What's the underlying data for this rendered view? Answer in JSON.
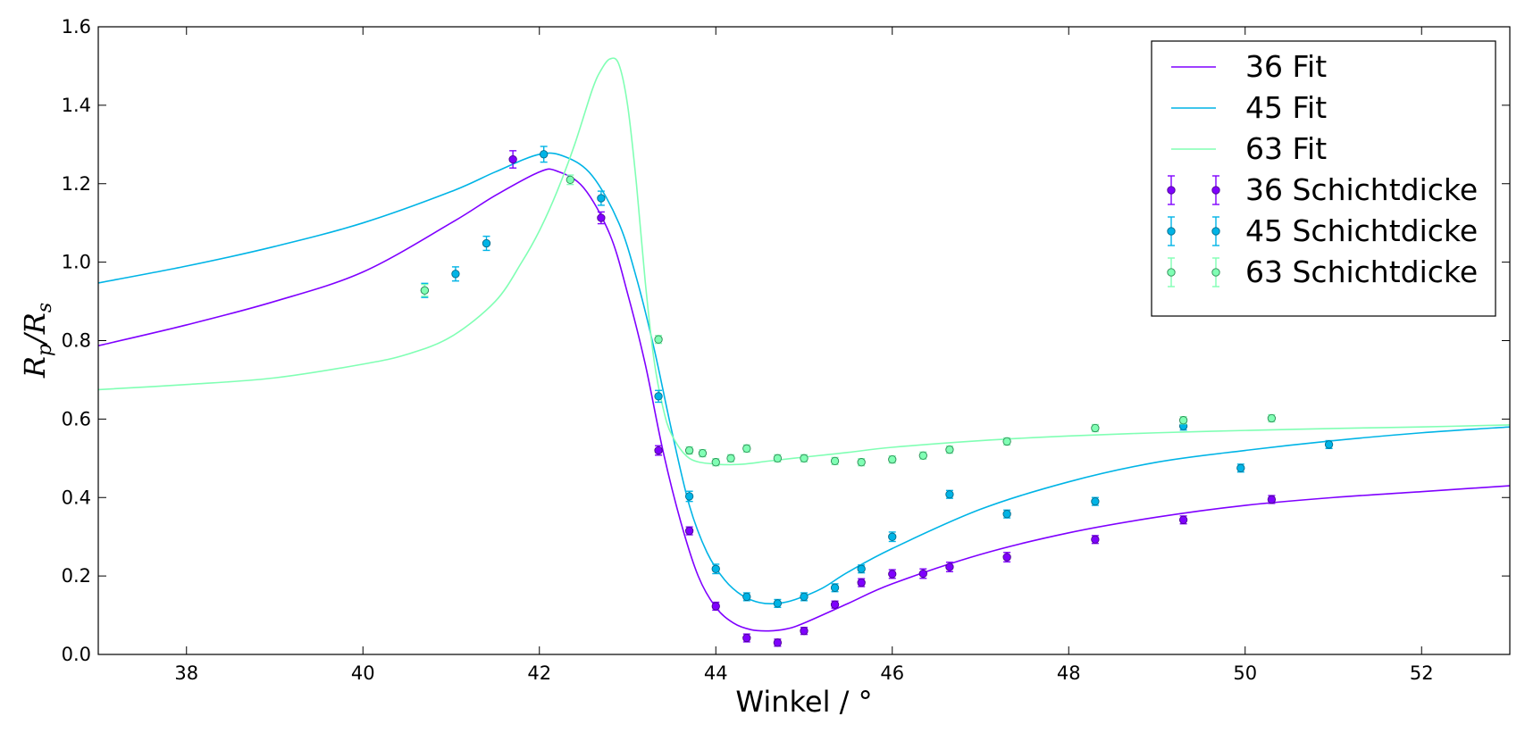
{
  "chart_data": {
    "type": "scatter",
    "xlabel": "Winkel / °",
    "ylabel": "Rp/Rs",
    "ylabel_parts": {
      "main": "R",
      "num_sub": "p",
      "slash": "/",
      "den": "R",
      "den_sub": "s"
    },
    "xlim": [
      37,
      53
    ],
    "ylim": [
      0.0,
      1.6
    ],
    "xticks": [
      38,
      40,
      42,
      44,
      46,
      48,
      50,
      52
    ],
    "yticks": [
      0.0,
      0.2,
      0.4,
      0.6,
      0.8,
      1.0,
      1.2,
      1.4,
      1.6
    ],
    "ytick_labels": [
      "0.0",
      "0.2",
      "0.4",
      "0.6",
      "0.8",
      "1.0",
      "1.2",
      "1.4",
      "1.6"
    ],
    "grid": false,
    "legend_position": "top-right",
    "series": [
      {
        "name": "36 Fit",
        "kind": "line",
        "color": "#7f00ff",
        "x": [
          37.0,
          38.0,
          39.0,
          40.0,
          41.0,
          41.5,
          42.0,
          42.2,
          42.5,
          42.8,
          43.0,
          43.2,
          43.4,
          43.6,
          43.8,
          44.0,
          44.2,
          44.4,
          44.6,
          44.8,
          45.0,
          45.5,
          46.0,
          47.0,
          48.0,
          49.0,
          50.0,
          51.0,
          52.0,
          53.0
        ],
        "y": [
          0.787,
          0.84,
          0.9,
          0.975,
          1.1,
          1.17,
          1.23,
          1.232,
          1.19,
          1.07,
          0.92,
          0.74,
          0.52,
          0.34,
          0.2,
          0.12,
          0.08,
          0.063,
          0.06,
          0.065,
          0.08,
          0.13,
          0.18,
          0.255,
          0.31,
          0.35,
          0.38,
          0.4,
          0.415,
          0.43
        ]
      },
      {
        "name": "45 Fit",
        "kind": "line",
        "color": "#00b4e6",
        "x": [
          37.0,
          38.0,
          39.0,
          40.0,
          41.0,
          41.5,
          42.0,
          42.3,
          42.6,
          42.9,
          43.1,
          43.3,
          43.5,
          43.7,
          43.9,
          44.1,
          44.3,
          44.5,
          44.7,
          44.9,
          45.2,
          45.5,
          46.0,
          47.0,
          48.0,
          49.0,
          50.0,
          51.0,
          52.0,
          53.0
        ],
        "y": [
          0.947,
          0.99,
          1.04,
          1.1,
          1.18,
          1.23,
          1.275,
          1.268,
          1.22,
          1.1,
          0.96,
          0.78,
          0.57,
          0.38,
          0.26,
          0.19,
          0.15,
          0.132,
          0.13,
          0.14,
          0.168,
          0.21,
          0.27,
          0.37,
          0.44,
          0.49,
          0.52,
          0.545,
          0.565,
          0.58
        ]
      },
      {
        "name": "63 Fit",
        "kind": "line",
        "color": "#80ffb4",
        "x": [
          37.0,
          38.0,
          39.0,
          40.0,
          40.5,
          41.0,
          41.5,
          41.8,
          42.0,
          42.2,
          42.4,
          42.6,
          42.7,
          42.8,
          42.9,
          43.0,
          43.1,
          43.2,
          43.3,
          43.4,
          43.5,
          43.7,
          44.0,
          44.3,
          44.6,
          45.0,
          45.5,
          46.0,
          47.0,
          48.0,
          49.0,
          50.0,
          51.0,
          52.0,
          53.0
        ],
        "y": [
          0.675,
          0.688,
          0.705,
          0.74,
          0.765,
          0.81,
          0.9,
          1.0,
          1.08,
          1.18,
          1.3,
          1.44,
          1.49,
          1.518,
          1.505,
          1.4,
          1.2,
          0.95,
          0.75,
          0.63,
          0.56,
          0.5,
          0.485,
          0.485,
          0.493,
          0.503,
          0.515,
          0.528,
          0.545,
          0.557,
          0.565,
          0.571,
          0.576,
          0.58,
          0.585
        ]
      },
      {
        "name": "36 Schichtdicke",
        "kind": "errorbar",
        "color": "#7f00ff",
        "edge": "#4a0090",
        "x": [
          41.7,
          42.7,
          43.35,
          43.7,
          44.0,
          44.35,
          44.7,
          45.0,
          45.35,
          45.65,
          46.0,
          46.35,
          46.65,
          47.3,
          48.3,
          49.3,
          50.3
        ],
        "y": [
          1.262,
          1.113,
          0.52,
          0.315,
          0.123,
          0.042,
          0.03,
          0.06,
          0.127,
          0.183,
          0.205,
          0.206,
          0.223,
          0.248,
          0.293,
          0.343,
          0.395
        ],
        "yerr": [
          0.022,
          0.015,
          0.012,
          0.01,
          0.01,
          0.01,
          0.009,
          0.009,
          0.009,
          0.01,
          0.011,
          0.012,
          0.012,
          0.012,
          0.01,
          0.01,
          0.01
        ]
      },
      {
        "name": "45 Schichtdicke",
        "kind": "errorbar",
        "color": "#00b4e6",
        "edge": "#006a8a",
        "x": [
          40.7,
          41.05,
          41.4,
          42.05,
          42.7,
          43.35,
          43.7,
          44.0,
          44.35,
          44.7,
          45.0,
          45.35,
          45.65,
          46.0,
          46.65,
          47.3,
          48.3,
          49.3,
          49.95,
          50.95
        ],
        "y": [
          0.928,
          0.97,
          1.048,
          1.275,
          1.163,
          0.658,
          0.403,
          0.218,
          0.147,
          0.13,
          0.147,
          0.17,
          0.218,
          0.3,
          0.408,
          0.358,
          0.39,
          0.582,
          0.475,
          0.535
        ],
        "yerr": [
          0.018,
          0.018,
          0.018,
          0.02,
          0.018,
          0.015,
          0.013,
          0.012,
          0.01,
          0.01,
          0.01,
          0.01,
          0.01,
          0.012,
          0.01,
          0.01,
          0.01,
          0.01,
          0.01,
          0.01
        ]
      },
      {
        "name": "63 Schichtdicke",
        "kind": "errorbar",
        "color": "#80ffb4",
        "edge": "#2e8a55",
        "x": [
          40.7,
          42.35,
          43.35,
          43.7,
          43.85,
          44.0,
          44.17,
          44.35,
          44.7,
          45.0,
          45.35,
          45.65,
          46.0,
          46.35,
          46.65,
          47.3,
          48.3,
          49.3,
          50.3
        ],
        "y": [
          0.928,
          1.21,
          0.803,
          0.52,
          0.513,
          0.49,
          0.5,
          0.525,
          0.5,
          0.5,
          0.493,
          0.49,
          0.497,
          0.507,
          0.522,
          0.543,
          0.577,
          0.597,
          0.602
        ],
        "yerr": [
          0.015,
          0.012,
          0.01,
          0.009,
          0.009,
          0.009,
          0.009,
          0.009,
          0.009,
          0.009,
          0.009,
          0.009,
          0.009,
          0.009,
          0.009,
          0.009,
          0.009,
          0.009,
          0.009
        ]
      }
    ]
  }
}
